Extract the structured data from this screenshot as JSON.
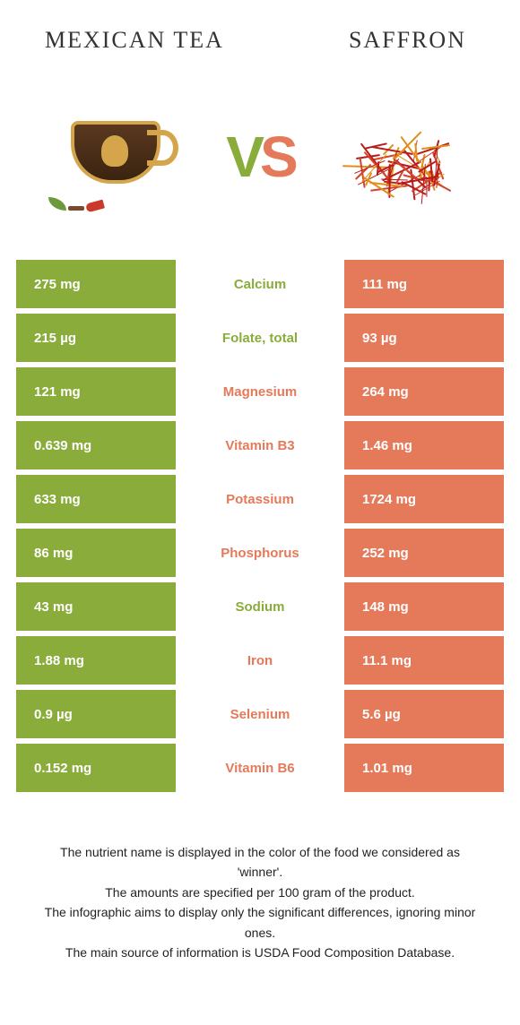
{
  "header": {
    "left_title": "Mexican tea",
    "right_title": "Saffron"
  },
  "vs": {
    "v": "V",
    "s": "S"
  },
  "colors": {
    "left": "#8aac3a",
    "right": "#e47a5a",
    "background": "#ffffff",
    "text": "#222222"
  },
  "table": {
    "rows": [
      {
        "left": "275 mg",
        "nutrient": "Calcium",
        "right": "111 mg",
        "winner": "left"
      },
      {
        "left": "215 µg",
        "nutrient": "Folate, total",
        "right": "93 µg",
        "winner": "left"
      },
      {
        "left": "121 mg",
        "nutrient": "Magnesium",
        "right": "264 mg",
        "winner": "right"
      },
      {
        "left": "0.639 mg",
        "nutrient": "Vitamin B3",
        "right": "1.46 mg",
        "winner": "right"
      },
      {
        "left": "633 mg",
        "nutrient": "Potassium",
        "right": "1724 mg",
        "winner": "right"
      },
      {
        "left": "86 mg",
        "nutrient": "Phosphorus",
        "right": "252 mg",
        "winner": "right"
      },
      {
        "left": "43 mg",
        "nutrient": "Sodium",
        "right": "148 mg",
        "winner": "left"
      },
      {
        "left": "1.88 mg",
        "nutrient": "Iron",
        "right": "11.1 mg",
        "winner": "right"
      },
      {
        "left": "0.9 µg",
        "nutrient": "Selenium",
        "right": "5.6 µg",
        "winner": "right"
      },
      {
        "left": "0.152 mg",
        "nutrient": "Vitamin B6",
        "right": "1.01 mg",
        "winner": "right"
      }
    ]
  },
  "footer": {
    "line1": "The nutrient name is displayed in the color of the food we considered as 'winner'.",
    "line2": "The amounts are specified per 100 gram of the product.",
    "line3": "The infographic aims to display only the significant differences, ignoring minor ones.",
    "line4": "The main source of information is USDA Food Composition Database."
  }
}
